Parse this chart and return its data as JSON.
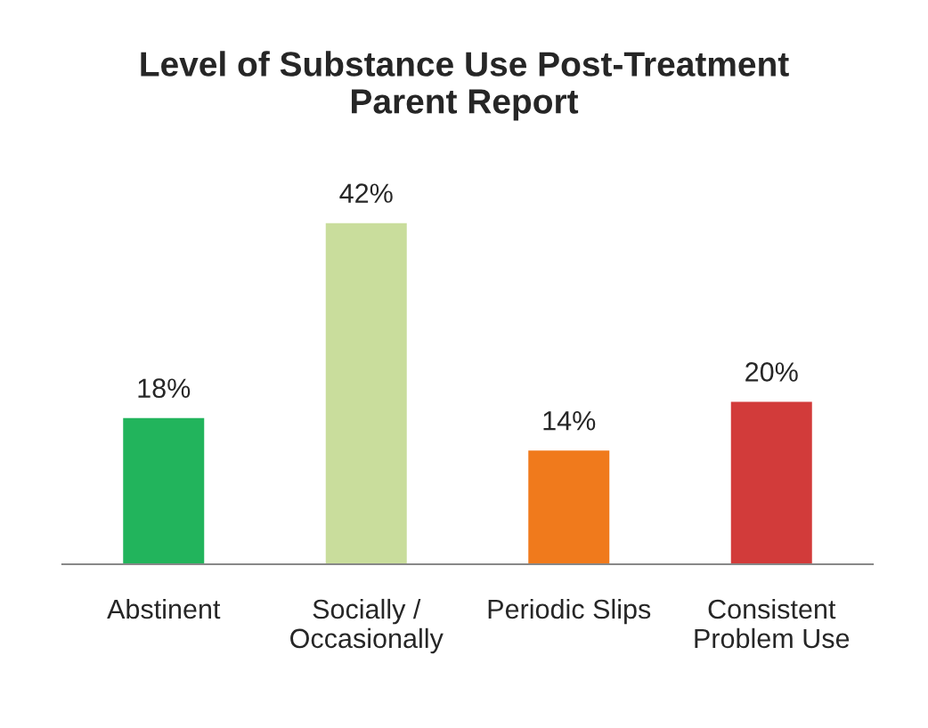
{
  "chart_data": {
    "type": "bar",
    "title": "Level of Substance Use Post-Treatment\nParent Report",
    "categories": [
      "Abstinent",
      "Socially /\nOccasionally",
      "Periodic Slips",
      "Consistent\nProblem Use"
    ],
    "values": [
      18,
      42,
      14,
      20
    ],
    "colors": [
      "#22b45c",
      "#c9dd9c",
      "#f07a1c",
      "#d23b3a"
    ],
    "value_labels": [
      "18%",
      "42%",
      "14%",
      "20%"
    ],
    "grid": false,
    "legend": false
  }
}
